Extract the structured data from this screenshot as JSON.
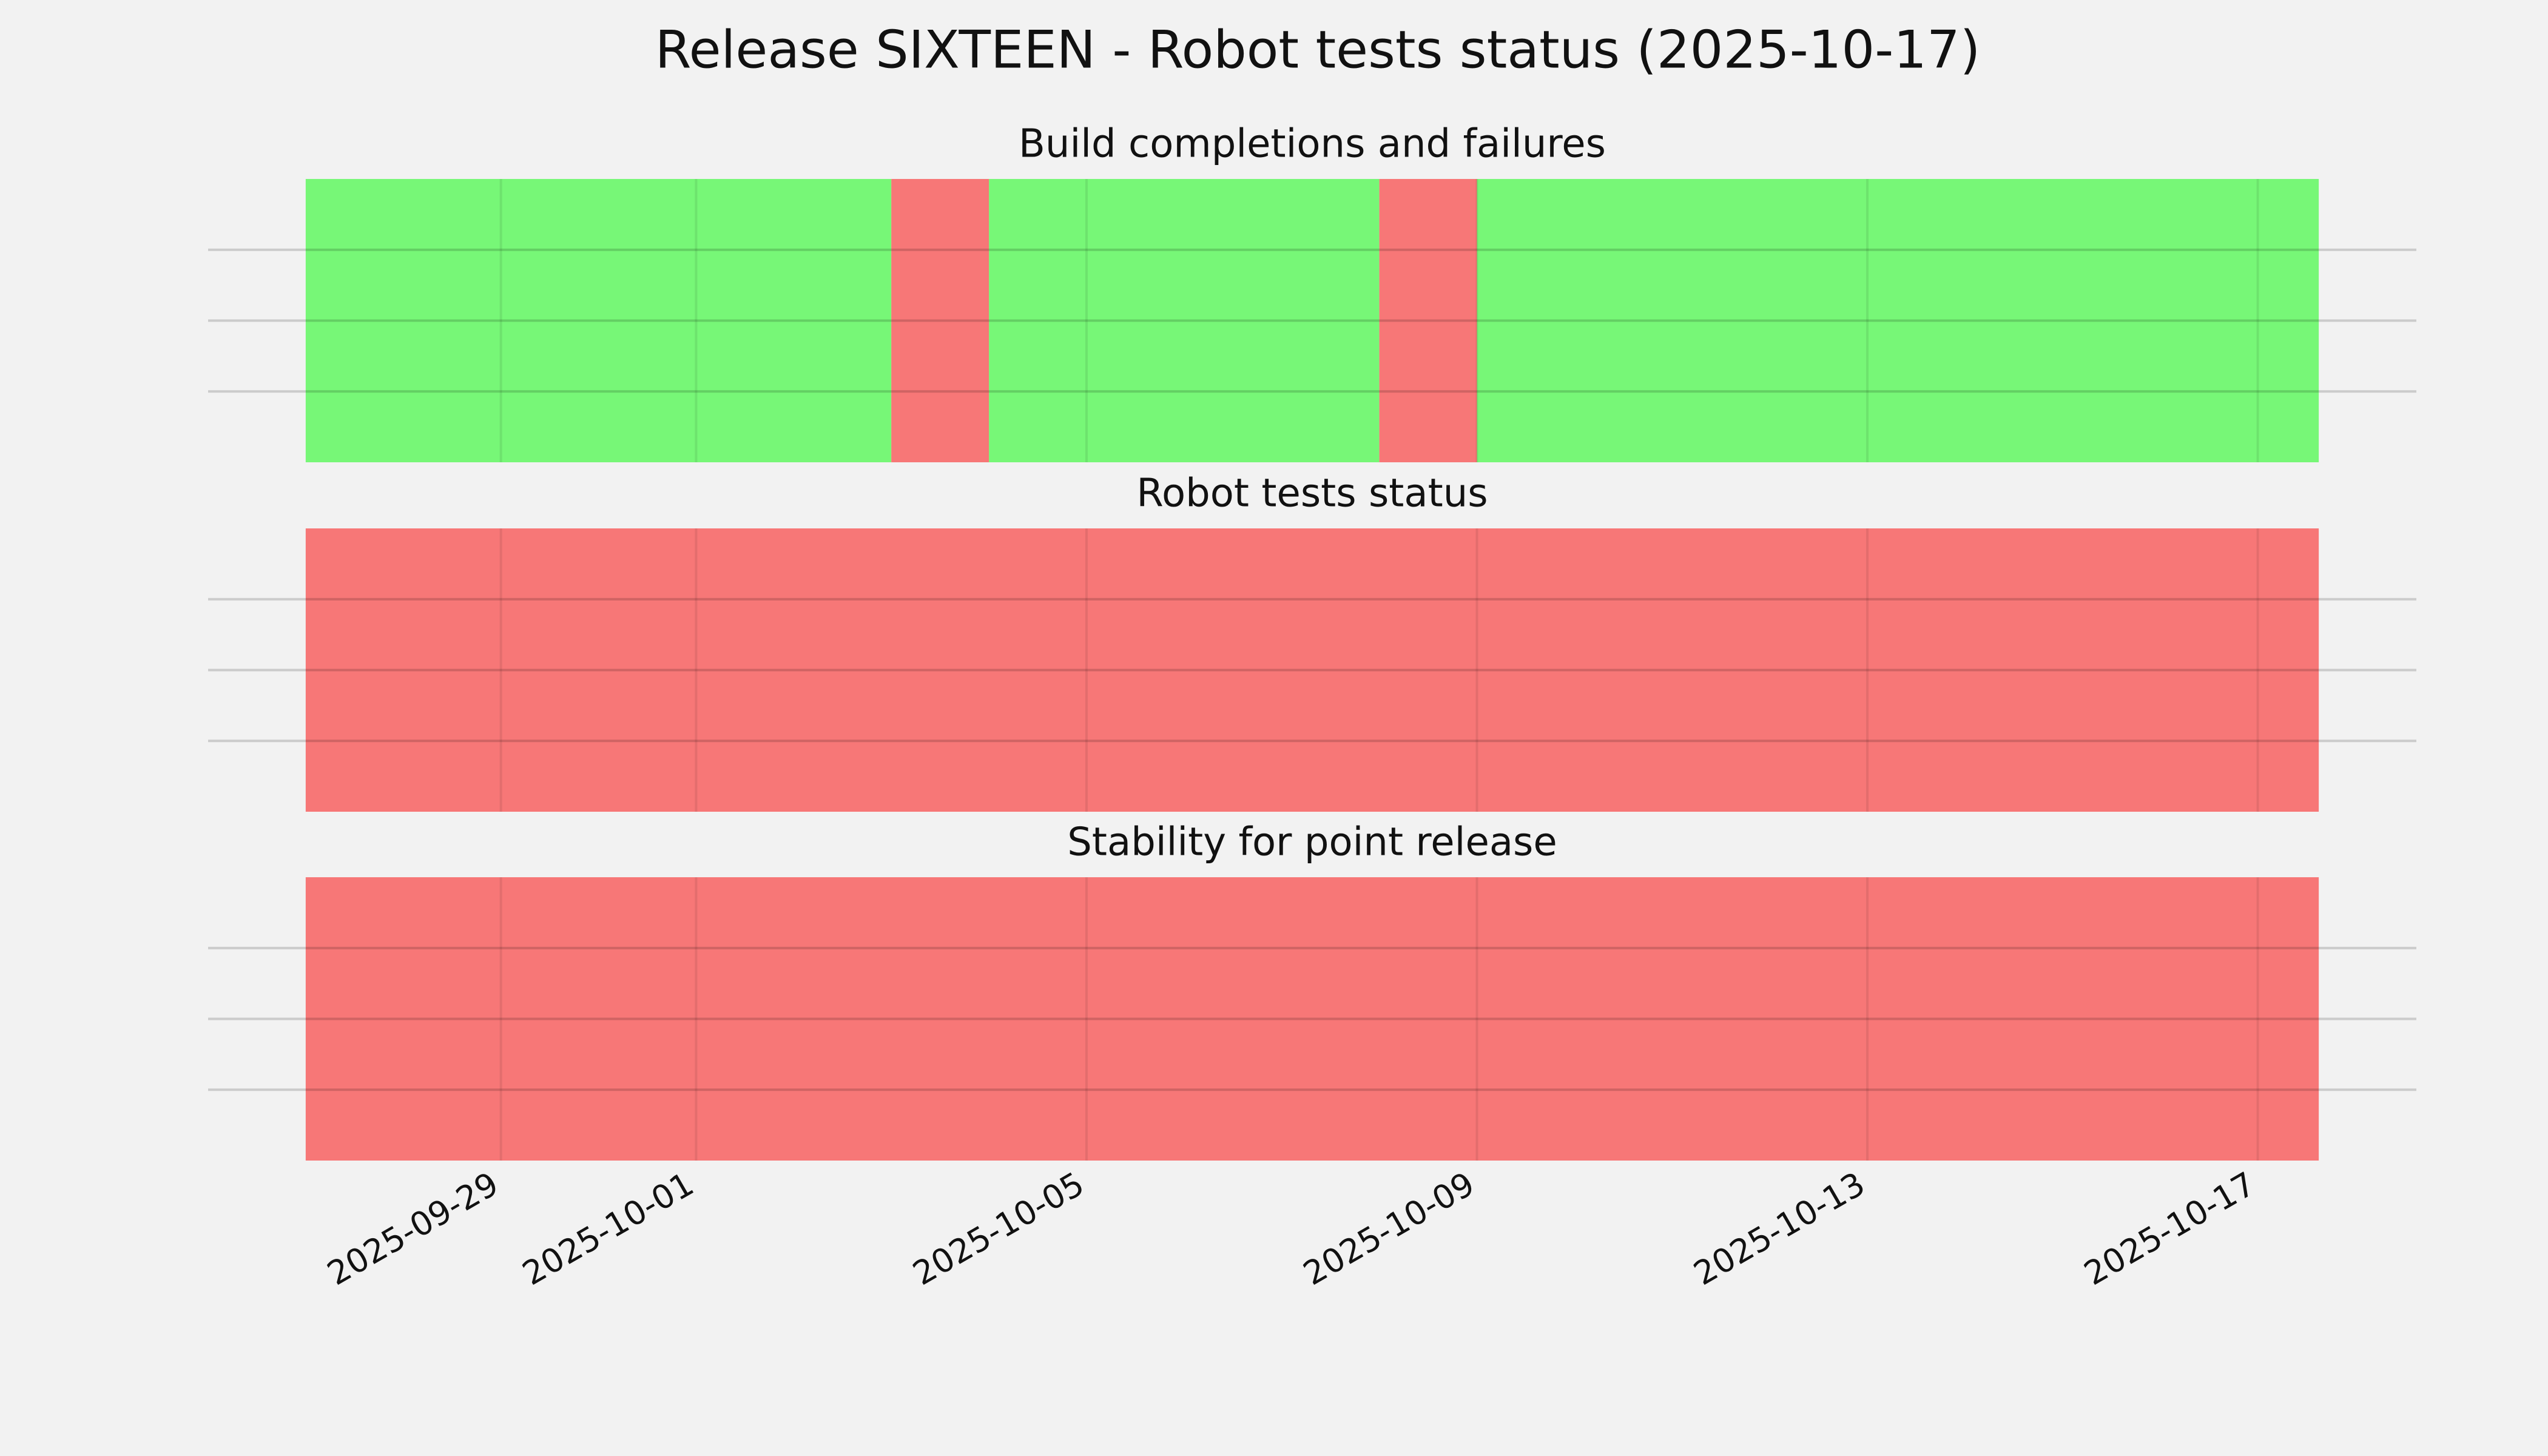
{
  "title": "Release SIXTEEN - Robot tests status (2025-10-17)",
  "chart_data": [
    {
      "type": "timeline",
      "title": "Build completions and failures",
      "xlim": [
        "2025-09-26",
        "2025-10-18T15:00"
      ],
      "ylim": [
        0,
        1
      ],
      "yticks": [
        0.25,
        0.5,
        0.75
      ],
      "grid": true,
      "series": [
        {
          "color": "#77f777",
          "spans": [
            [
              "2025-09-27",
              "2025-10-03"
            ],
            [
              "2025-10-04",
              "2025-10-08"
            ],
            [
              "2025-10-09",
              "2025-10-17T15:00"
            ]
          ]
        },
        {
          "color": "#f77777",
          "spans": [
            [
              "2025-10-03",
              "2025-10-04"
            ],
            [
              "2025-10-08",
              "2025-10-09"
            ]
          ]
        }
      ]
    },
    {
      "type": "timeline",
      "title": "Robot tests status",
      "xlim": [
        "2025-09-26",
        "2025-10-18T15:00"
      ],
      "ylim": [
        0,
        1
      ],
      "yticks": [
        0.25,
        0.5,
        0.75
      ],
      "grid": true,
      "series": [
        {
          "color": "#f77777",
          "spans": [
            [
              "2025-09-27",
              "2025-10-17T15:00"
            ]
          ]
        }
      ]
    },
    {
      "type": "timeline",
      "title": "Stability for point release",
      "xlim": [
        "2025-09-26",
        "2025-10-18T15:00"
      ],
      "ylim": [
        0,
        1
      ],
      "yticks": [
        0.25,
        0.5,
        0.75
      ],
      "grid": true,
      "xticks": [
        "2025-09-29",
        "2025-10-01",
        "2025-10-05",
        "2025-10-09",
        "2025-10-13",
        "2025-10-17"
      ],
      "series": [
        {
          "color": "#f77777",
          "spans": [
            [
              "2025-09-27",
              "2025-10-17T15:00"
            ]
          ]
        }
      ]
    }
  ]
}
